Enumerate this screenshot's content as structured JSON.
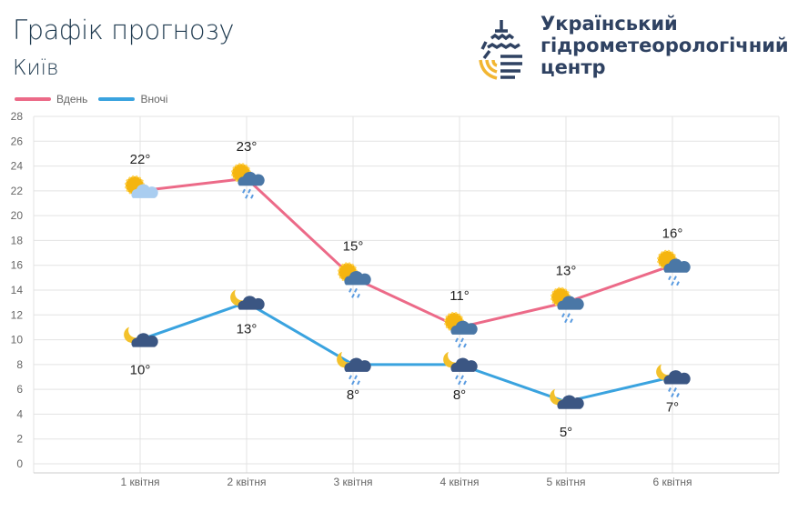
{
  "header": {
    "title": "Графік прогнозу",
    "city": "Київ"
  },
  "org": {
    "line1": "Український",
    "line2": "гідрометеорологічний",
    "line3": "центр"
  },
  "colors": {
    "day": "#ec6a88",
    "night": "#3aa3df",
    "grid": "#e3e3e3"
  },
  "chart_data": {
    "type": "line",
    "categories": [
      "1 квітня",
      "2 квітня",
      "3 квітня",
      "4 квітня",
      "5 квітня",
      "6 квітня"
    ],
    "ylim": [
      0,
      28
    ],
    "yticks": [
      0,
      2,
      4,
      6,
      8,
      10,
      12,
      14,
      16,
      18,
      20,
      22,
      24,
      26,
      28
    ],
    "legend_position": "top-left",
    "grid": true,
    "series": [
      {
        "name": "Вдень",
        "values": [
          22,
          23,
          15,
          11,
          13,
          16
        ],
        "labels": [
          "22°",
          "23°",
          "15°",
          "11°",
          "13°",
          "16°"
        ],
        "icons": [
          "sun-light-cloud",
          "sun-cloud-rain",
          "sun-cloud-rain",
          "sun-cloud-rain",
          "sun-cloud-rain",
          "sun-cloud-rain"
        ]
      },
      {
        "name": "Вночі",
        "values": [
          10,
          13,
          8,
          8,
          5,
          7
        ],
        "labels": [
          "10°",
          "13°",
          "8°",
          "8°",
          "5°",
          "7°"
        ],
        "icons": [
          "moon-cloud",
          "moon-cloud",
          "moon-cloud-rain",
          "moon-cloud-rain",
          "moon-cloud",
          "moon-cloud-rain"
        ]
      }
    ]
  }
}
